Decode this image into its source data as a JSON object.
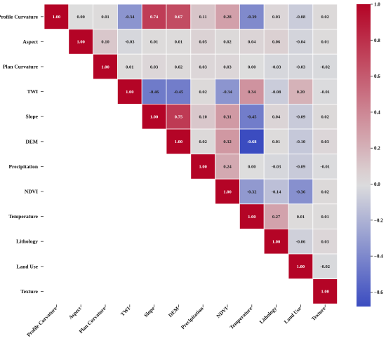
{
  "chart_data": {
    "type": "heatmap",
    "title": "",
    "variables": [
      "Profile Curvature",
      "Aspect",
      "Plan Curvature",
      "TWI",
      "Slope",
      "DEM",
      "Precipitation",
      "NDVI",
      "Temperature",
      "Lithology",
      "Land Use",
      "Texture"
    ],
    "matrix": [
      [
        1.0,
        0.0,
        0.01,
        -0.34,
        0.74,
        0.67,
        0.11,
        0.28,
        -0.39,
        0.03,
        -0.08,
        0.02
      ],
      [
        null,
        1.0,
        0.1,
        -0.03,
        0.01,
        0.01,
        0.05,
        0.02,
        0.04,
        0.06,
        -0.04,
        0.01
      ],
      [
        null,
        null,
        1.0,
        0.01,
        0.03,
        0.02,
        0.03,
        0.03,
        0.0,
        -0.03,
        -0.03,
        -0.02
      ],
      [
        null,
        null,
        null,
        1.0,
        -0.46,
        -0.45,
        0.02,
        -0.34,
        0.34,
        -0.08,
        0.2,
        -0.01
      ],
      [
        null,
        null,
        null,
        null,
        1.0,
        0.75,
        0.1,
        0.31,
        -0.45,
        0.04,
        -0.09,
        0.02
      ],
      [
        null,
        null,
        null,
        null,
        null,
        1.0,
        0.02,
        0.32,
        -0.68,
        0.01,
        -0.1,
        0.03
      ],
      [
        null,
        null,
        null,
        null,
        null,
        null,
        1.0,
        0.24,
        0.0,
        -0.03,
        -0.09,
        -0.01
      ],
      [
        null,
        null,
        null,
        null,
        null,
        null,
        null,
        1.0,
        -0.32,
        -0.14,
        -0.36,
        0.02
      ],
      [
        null,
        null,
        null,
        null,
        null,
        null,
        null,
        null,
        1.0,
        0.27,
        0.01,
        0.01
      ],
      [
        null,
        null,
        null,
        null,
        null,
        null,
        null,
        null,
        null,
        1.0,
        -0.06,
        0.03
      ],
      [
        null,
        null,
        null,
        null,
        null,
        null,
        null,
        null,
        null,
        null,
        1.0,
        -0.02
      ],
      [
        null,
        null,
        null,
        null,
        null,
        null,
        null,
        null,
        null,
        null,
        null,
        1.0
      ]
    ],
    "color_scale": {
      "min": -0.68,
      "center": 0.0,
      "max": 1.0,
      "low_color": "#3b4cc0",
      "mid_color": "#dddddd",
      "high_color": "#b40426"
    },
    "colorbar_ticks": [
      "1.0",
      "0.8",
      "0.6",
      "0.4",
      "0.2",
      "0.0",
      "−0.2",
      "−0.4",
      "−0.6"
    ],
    "colorbar_tick_values": [
      1.0,
      0.8,
      0.6,
      0.4,
      0.2,
      0.0,
      -0.2,
      -0.4,
      -0.6
    ],
    "grid": true,
    "legend": "colorbar-right"
  }
}
